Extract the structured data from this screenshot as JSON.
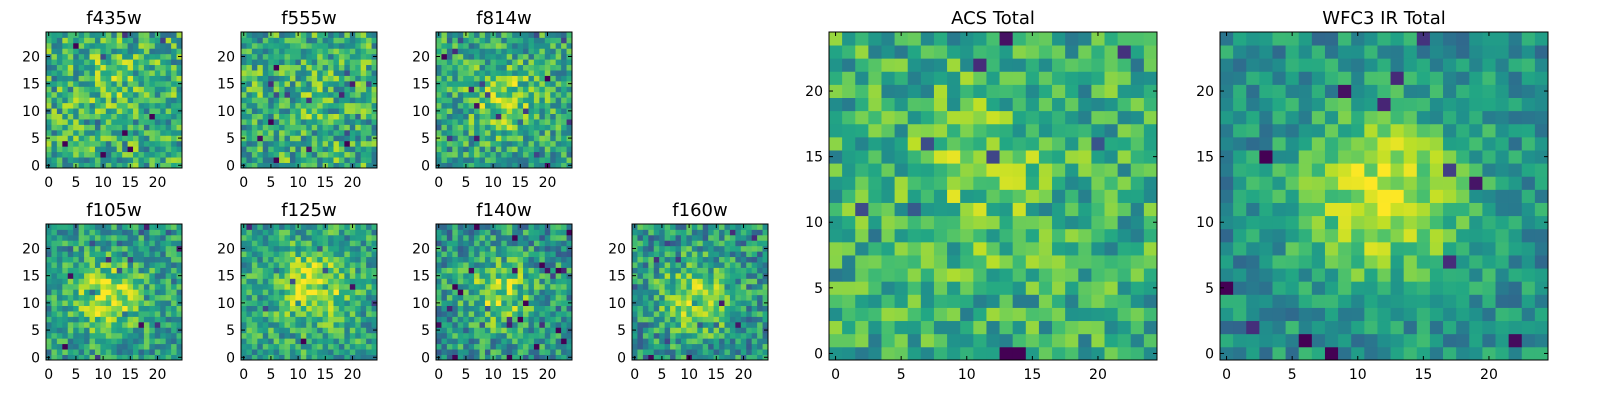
{
  "figure": {
    "description_free": true
  },
  "chart_data": [
    {
      "type": "heatmap",
      "title": "f435w",
      "grid": false,
      "colormap": "viridis",
      "x_ticks": [
        "0",
        "5",
        "10",
        "15",
        "20"
      ],
      "y_ticks": [
        "0",
        "5",
        "10",
        "15",
        "20"
      ],
      "xlim": [
        0,
        25
      ],
      "ylim": [
        0,
        25
      ],
      "source_size": 25,
      "peak": [
        12,
        16
      ],
      "peak_strength": 0.1,
      "noise": 0.55,
      "base": 0.62,
      "seed": 11
    },
    {
      "type": "heatmap",
      "title": "f555w",
      "grid": false,
      "colormap": "viridis",
      "x_ticks": [
        "0",
        "5",
        "10",
        "15",
        "20"
      ],
      "y_ticks": [
        "0",
        "5",
        "10",
        "15",
        "20"
      ],
      "xlim": [
        0,
        25
      ],
      "ylim": [
        0,
        25
      ],
      "source_size": 25,
      "peak": [
        12,
        12
      ],
      "peak_strength": 0.05,
      "noise": 0.55,
      "base": 0.62,
      "seed": 23
    },
    {
      "type": "heatmap",
      "title": "f814w",
      "grid": false,
      "colormap": "viridis",
      "x_ticks": [
        "0",
        "5",
        "10",
        "15",
        "20"
      ],
      "y_ticks": [
        "0",
        "5",
        "10",
        "15",
        "20"
      ],
      "xlim": [
        0,
        25
      ],
      "ylim": [
        0,
        25
      ],
      "source_size": 25,
      "peak": [
        12,
        12
      ],
      "peak_strength": 0.25,
      "noise": 0.5,
      "base": 0.58,
      "seed": 37
    },
    {
      "type": "heatmap",
      "title": "f105w",
      "grid": false,
      "colormap": "viridis",
      "x_ticks": [
        "0",
        "5",
        "10",
        "15",
        "20"
      ],
      "y_ticks": [
        "0",
        "5",
        "10",
        "15",
        "20"
      ],
      "xlim": [
        0,
        25
      ],
      "ylim": [
        0,
        25
      ],
      "source_size": 25,
      "peak": [
        11,
        11
      ],
      "peak_strength": 0.35,
      "noise": 0.45,
      "base": 0.55,
      "seed": 41
    },
    {
      "type": "heatmap",
      "title": "f125w",
      "grid": false,
      "colormap": "viridis",
      "x_ticks": [
        "0",
        "5",
        "10",
        "15",
        "20"
      ],
      "y_ticks": [
        "0",
        "5",
        "10",
        "15",
        "20"
      ],
      "xlim": [
        0,
        25
      ],
      "ylim": [
        0,
        25
      ],
      "source_size": 25,
      "peak": [
        13,
        13
      ],
      "peak_strength": 0.35,
      "noise": 0.45,
      "base": 0.58,
      "seed": 53
    },
    {
      "type": "heatmap",
      "title": "f140w",
      "grid": false,
      "colormap": "viridis",
      "x_ticks": [
        "0",
        "5",
        "10",
        "15",
        "20"
      ],
      "y_ticks": [
        "0",
        "5",
        "10",
        "15",
        "20"
      ],
      "xlim": [
        0,
        25
      ],
      "ylim": [
        0,
        25
      ],
      "source_size": 25,
      "peak": [
        11,
        12
      ],
      "peak_strength": 0.3,
      "noise": 0.5,
      "base": 0.52,
      "seed": 67
    },
    {
      "type": "heatmap",
      "title": "f160w",
      "grid": false,
      "colormap": "viridis",
      "x_ticks": [
        "0",
        "5",
        "10",
        "15",
        "20"
      ],
      "y_ticks": [
        "0",
        "5",
        "10",
        "15",
        "20"
      ],
      "xlim": [
        0,
        25
      ],
      "ylim": [
        0,
        25
      ],
      "source_size": 25,
      "peak": [
        11,
        11
      ],
      "peak_strength": 0.35,
      "noise": 0.5,
      "base": 0.52,
      "seed": 79
    },
    {
      "type": "heatmap",
      "title": "ACS Total",
      "grid": false,
      "colormap": "viridis",
      "x_ticks": [
        "0",
        "5",
        "10",
        "15",
        "20"
      ],
      "y_ticks": [
        "0",
        "5",
        "10",
        "15",
        "20"
      ],
      "xlim": [
        0,
        25
      ],
      "ylim": [
        0,
        25
      ],
      "source_size": 25,
      "peak": [
        11,
        13
      ],
      "peak_strength": 0.15,
      "noise": 0.45,
      "base": 0.62,
      "seed": 97
    },
    {
      "type": "heatmap",
      "title": "WFC3 IR Total",
      "grid": false,
      "colormap": "viridis",
      "x_ticks": [
        "0",
        "5",
        "10",
        "15",
        "20"
      ],
      "y_ticks": [
        "0",
        "5",
        "10",
        "15",
        "20"
      ],
      "xlim": [
        0,
        25
      ],
      "ylim": [
        0,
        25
      ],
      "source_size": 25,
      "peak": [
        12,
        12
      ],
      "peak_strength": 0.45,
      "noise": 0.35,
      "base": 0.5,
      "seed": 113
    }
  ]
}
